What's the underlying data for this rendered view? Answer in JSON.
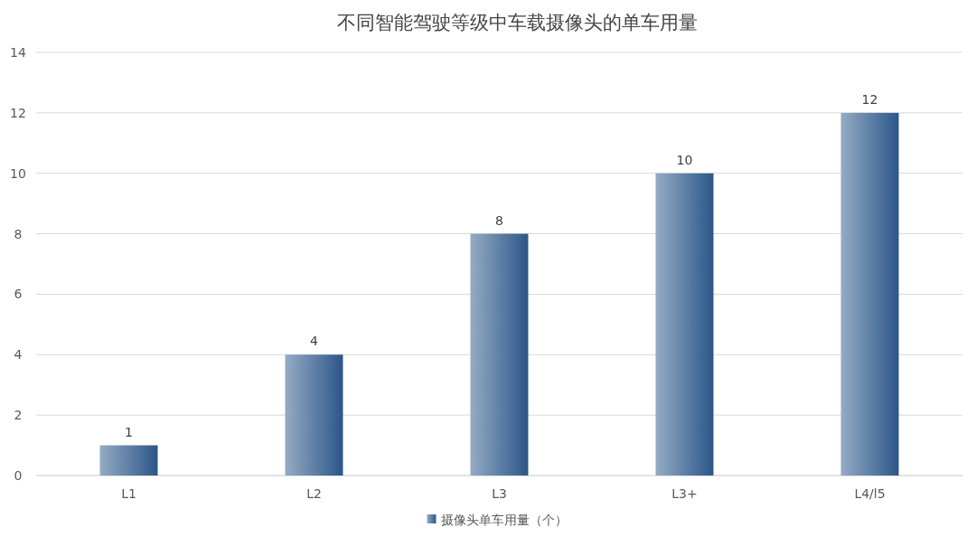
{
  "chart_data": {
    "type": "bar",
    "title": "不同智能驾驶等级中车载摄像头的单车用量",
    "categories": [
      "L1",
      "L2",
      "L3",
      "L3+",
      "L4/l5"
    ],
    "series": [
      {
        "name": "摄像头单车用量（个）",
        "color": "#2b5689",
        "values": [
          1,
          4,
          8,
          10,
          12
        ]
      }
    ],
    "ylim": [
      0,
      14
    ],
    "yticks": [
      0,
      2,
      4,
      6,
      8,
      10,
      12,
      14
    ],
    "grid": "y",
    "legend": "bottom",
    "data_labels": true
  }
}
